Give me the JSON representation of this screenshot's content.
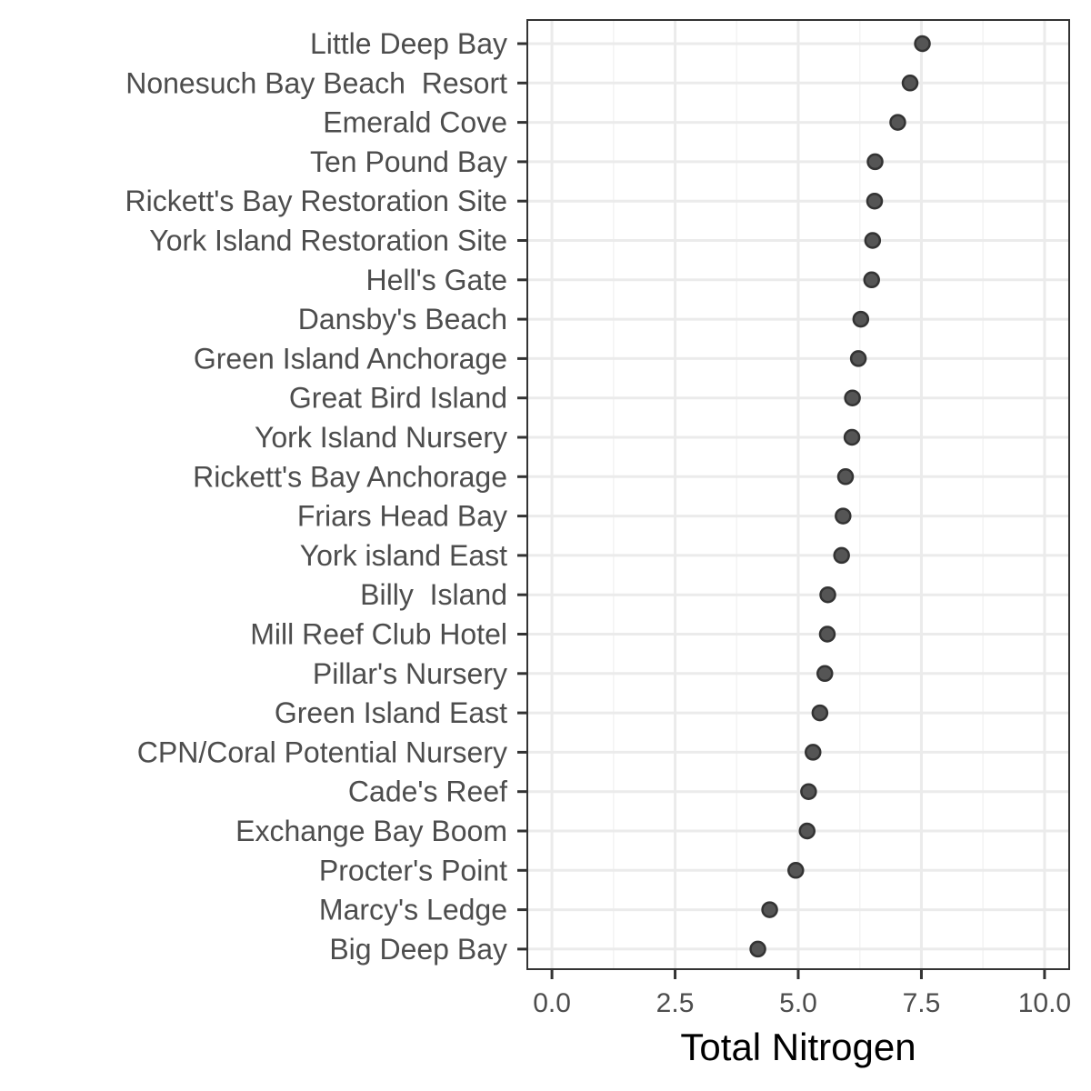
{
  "chart_data": {
    "type": "scatter",
    "title": "",
    "xlabel": "Total Nitrogen",
    "ylabel": "",
    "xlim": [
      -0.5,
      10.5
    ],
    "x_ticks": [
      0.0,
      2.5,
      5.0,
      7.5,
      10.0
    ],
    "x_tick_labels": [
      "0.0",
      "2.5",
      "5.0",
      "7.5",
      "10.0"
    ],
    "grid": true,
    "legend": "none",
    "colors": {
      "point_fill": "#555555",
      "point_stroke": "#333333",
      "grid_major": "#ebebeb",
      "grid_minor": "#f3f3f3",
      "panel_border": "#333333",
      "tick_text": "#4d4d4d",
      "title_text": "#000000"
    },
    "categories": [
      "Little Deep Bay",
      "Nonesuch Bay Beach  Resort",
      "Emerald Cove",
      "Ten Pound Bay",
      "Rickett's Bay Restoration Site",
      "York Island Restoration Site",
      "Hell's Gate",
      "Dansby's Beach",
      "Green Island Anchorage",
      "Great Bird Island",
      "York Island Nursery",
      "Rickett's Bay Anchorage",
      "Friars Head Bay",
      "York island East",
      "Billy  Island",
      "Mill Reef Club Hotel",
      "Pillar's Nursery",
      "Green Island East",
      "CPN/Coral Potential Nursery",
      "Cade's Reef",
      "Exchange Bay Boom",
      "Procter's Point",
      "Marcy's Ledge",
      "Big Deep Bay"
    ],
    "values": [
      7.52,
      7.27,
      7.02,
      6.56,
      6.55,
      6.51,
      6.49,
      6.27,
      6.22,
      6.1,
      6.09,
      5.96,
      5.91,
      5.88,
      5.6,
      5.59,
      5.54,
      5.44,
      5.3,
      5.21,
      5.18,
      4.95,
      4.42,
      4.18
    ]
  }
}
